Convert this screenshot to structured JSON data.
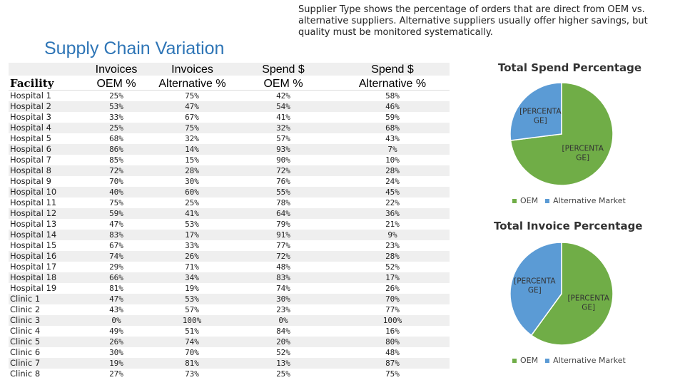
{
  "note": "Supplier Type shows the percentage of orders that are direct from OEM vs. alternative suppliers. Alternative suppliers usually offer higher savings, but quality must be monitored systematically.",
  "title": "Supply Chain Variation",
  "table": {
    "headers": {
      "facility": "Facility",
      "inv_oem": [
        "Invoices",
        "OEM %"
      ],
      "inv_alt": [
        "Invoices",
        "Alternative %"
      ],
      "spend_oem": [
        "Spend $",
        "OEM %"
      ],
      "spend_alt": [
        "Spend $",
        "Alternative %"
      ]
    },
    "rows": [
      {
        "facility": "Hospital 1",
        "inv_oem": "25%",
        "inv_alt": "75%",
        "spend_oem": "42%",
        "spend_alt": "58%"
      },
      {
        "facility": "Hospital 2",
        "inv_oem": "53%",
        "inv_alt": "47%",
        "spend_oem": "54%",
        "spend_alt": "46%"
      },
      {
        "facility": "Hospital 3",
        "inv_oem": "33%",
        "inv_alt": "67%",
        "spend_oem": "41%",
        "spend_alt": "59%"
      },
      {
        "facility": "Hospital 4",
        "inv_oem": "25%",
        "inv_alt": "75%",
        "spend_oem": "32%",
        "spend_alt": "68%"
      },
      {
        "facility": "Hospital 5",
        "inv_oem": "68%",
        "inv_alt": "32%",
        "spend_oem": "57%",
        "spend_alt": "43%"
      },
      {
        "facility": "Hospital 6",
        "inv_oem": "86%",
        "inv_alt": "14%",
        "spend_oem": "93%",
        "spend_alt": "7%"
      },
      {
        "facility": "Hospital 7",
        "inv_oem": "85%",
        "inv_alt": "15%",
        "spend_oem": "90%",
        "spend_alt": "10%"
      },
      {
        "facility": "Hospital 8",
        "inv_oem": "72%",
        "inv_alt": "28%",
        "spend_oem": "72%",
        "spend_alt": "28%"
      },
      {
        "facility": "Hospital 9",
        "inv_oem": "70%",
        "inv_alt": "30%",
        "spend_oem": "76%",
        "spend_alt": "24%"
      },
      {
        "facility": "Hospital 10",
        "inv_oem": "40%",
        "inv_alt": "60%",
        "spend_oem": "55%",
        "spend_alt": "45%"
      },
      {
        "facility": "Hospital 11",
        "inv_oem": "75%",
        "inv_alt": "25%",
        "spend_oem": "78%",
        "spend_alt": "22%"
      },
      {
        "facility": "Hospital 12",
        "inv_oem": "59%",
        "inv_alt": "41%",
        "spend_oem": "64%",
        "spend_alt": "36%"
      },
      {
        "facility": "Hospital 13",
        "inv_oem": "47%",
        "inv_alt": "53%",
        "spend_oem": "79%",
        "spend_alt": "21%"
      },
      {
        "facility": "Hospital 14",
        "inv_oem": "83%",
        "inv_alt": "17%",
        "spend_oem": "91%",
        "spend_alt": "9%"
      },
      {
        "facility": "Hospital 15",
        "inv_oem": "67%",
        "inv_alt": "33%",
        "spend_oem": "77%",
        "spend_alt": "23%"
      },
      {
        "facility": "Hospital 16",
        "inv_oem": "74%",
        "inv_alt": "26%",
        "spend_oem": "72%",
        "spend_alt": "28%"
      },
      {
        "facility": "Hospital 17",
        "inv_oem": "29%",
        "inv_alt": "71%",
        "spend_oem": "48%",
        "spend_alt": "52%"
      },
      {
        "facility": "Hospital 18",
        "inv_oem": "66%",
        "inv_alt": "34%",
        "spend_oem": "83%",
        "spend_alt": "17%"
      },
      {
        "facility": "Hospital 19",
        "inv_oem": "81%",
        "inv_alt": "19%",
        "spend_oem": "74%",
        "spend_alt": "26%"
      },
      {
        "facility": "Clinic 1",
        "inv_oem": "47%",
        "inv_alt": "53%",
        "spend_oem": "30%",
        "spend_alt": "70%"
      },
      {
        "facility": "Clinic 2",
        "inv_oem": "43%",
        "inv_alt": "57%",
        "spend_oem": "23%",
        "spend_alt": "77%"
      },
      {
        "facility": "Clinic 3",
        "inv_oem": "0%",
        "inv_alt": "100%",
        "spend_oem": "0%",
        "spend_alt": "100%"
      },
      {
        "facility": "Clinic 4",
        "inv_oem": "49%",
        "inv_alt": "51%",
        "spend_oem": "84%",
        "spend_alt": "16%"
      },
      {
        "facility": "Clinic 5",
        "inv_oem": "26%",
        "inv_alt": "74%",
        "spend_oem": "20%",
        "spend_alt": "80%"
      },
      {
        "facility": "Clinic  6",
        "inv_oem": "30%",
        "inv_alt": "70%",
        "spend_oem": "52%",
        "spend_alt": "48%"
      },
      {
        "facility": "Clinic 7",
        "inv_oem": "19%",
        "inv_alt": "81%",
        "spend_oem": "13%",
        "spend_alt": "87%"
      },
      {
        "facility": "Clinic 8",
        "inv_oem": "27%",
        "inv_alt": "73%",
        "spend_oem": "25%",
        "spend_alt": "75%"
      }
    ]
  },
  "chart_data": [
    {
      "type": "pie",
      "title": "Total Spend Percentage",
      "slices": [
        {
          "name": "OEM",
          "value": 73,
          "label": "[PERCENTA GE]",
          "color": "#70ad47"
        },
        {
          "name": "Alternative Market",
          "value": 27,
          "label": "[PERCENTA GE]",
          "color": "#5b9bd5"
        }
      ],
      "legend": [
        "OEM",
        "Alternative Market"
      ],
      "legend_position": "bottom"
    },
    {
      "type": "pie",
      "title": "Total Invoice Percentage",
      "slices": [
        {
          "name": "OEM",
          "value": 60,
          "label": "[PERCENTA GE]",
          "color": "#70ad47"
        },
        {
          "name": "Alternative Market",
          "value": 40,
          "label": "[PERCENTA GE]",
          "color": "#5b9bd5"
        }
      ],
      "legend": [
        "OEM",
        "Alternative Market"
      ],
      "legend_position": "bottom"
    }
  ]
}
